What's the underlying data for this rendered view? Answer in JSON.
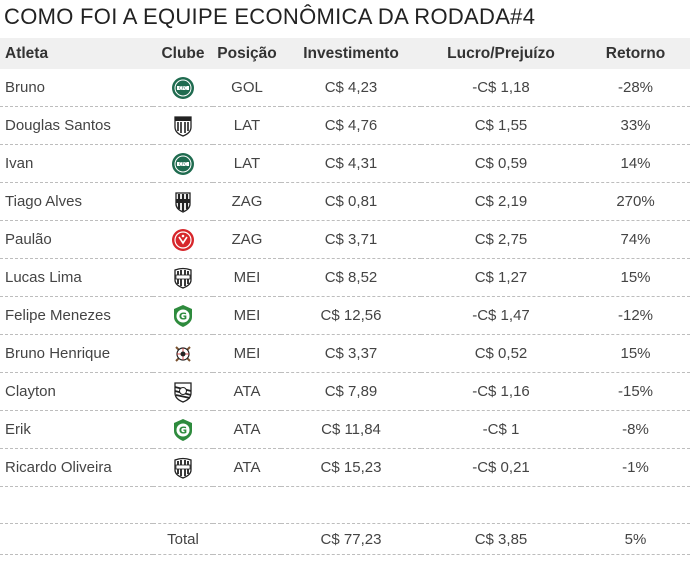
{
  "title": "COMO FOI A EQUIPE ECONÔMICA DA RODADA#4",
  "headers": {
    "atleta": "Atleta",
    "clube": "Clube",
    "posicao": "Posição",
    "investimento": "Investimento",
    "lucro": "Lucro/Prejuízo",
    "retorno": "Retorno"
  },
  "rows": [
    {
      "atleta": "Bruno",
      "clube_icon": "coritiba-crest-icon",
      "posicao": "GOL",
      "investimento": "C$ 4,23",
      "lucro": "-C$ 1,18",
      "retorno": "-28%"
    },
    {
      "atleta": "Douglas Santos",
      "clube_icon": "atletico-mg-crest-icon",
      "posicao": "LAT",
      "investimento": "C$ 4,76",
      "lucro": "C$ 1,55",
      "retorno": "33%"
    },
    {
      "atleta": "Ivan",
      "clube_icon": "coritiba-crest-icon",
      "posicao": "LAT",
      "investimento": "C$ 4,31",
      "lucro": "C$ 0,59",
      "retorno": "14%"
    },
    {
      "atleta": "Tiago Alves",
      "clube_icon": "ponte-preta-crest-icon",
      "posicao": "ZAG",
      "investimento": "C$ 0,81",
      "lucro": "C$ 2,19",
      "retorno": "270%"
    },
    {
      "atleta": "Paulão",
      "clube_icon": "internacional-crest-icon",
      "posicao": "ZAG",
      "investimento": "C$ 3,71",
      "lucro": "C$ 2,75",
      "retorno": "74%"
    },
    {
      "atleta": "Lucas Lima",
      "clube_icon": "santos-crest-icon",
      "posicao": "MEI",
      "investimento": "C$ 8,52",
      "lucro": "C$ 1,27",
      "retorno": "15%"
    },
    {
      "atleta": "Felipe Menezes",
      "clube_icon": "goias-crest-icon",
      "posicao": "MEI",
      "investimento": "C$ 12,56",
      "lucro": "-C$ 1,47",
      "retorno": "-12%"
    },
    {
      "atleta": "Bruno Henrique",
      "clube_icon": "corinthians-crest-icon",
      "posicao": "MEI",
      "investimento": "C$ 3,37",
      "lucro": "C$ 0,52",
      "retorno": "15%"
    },
    {
      "atleta": "Clayton",
      "clube_icon": "figueirense-crest-icon",
      "posicao": "ATA",
      "investimento": "C$ 7,89",
      "lucro": "-C$ 1,16",
      "retorno": "-15%"
    },
    {
      "atleta": "Erik",
      "clube_icon": "goias-crest-icon",
      "posicao": "ATA",
      "investimento": "C$ 11,84",
      "lucro": "-C$ 1",
      "retorno": "-8%"
    },
    {
      "atleta": "Ricardo Oliveira",
      "clube_icon": "santos-crest-icon",
      "posicao": "ATA",
      "investimento": "C$ 15,23",
      "lucro": "-C$ 0,21",
      "retorno": "-1%"
    }
  ],
  "total": {
    "label": "Total",
    "investimento": "C$ 77,23",
    "lucro": "C$ 3,85",
    "retorno": "5%"
  },
  "colors": {
    "coritiba": "#1f6b4f",
    "internacional": "#d7262b",
    "goias": "#2e8b3d",
    "black": "#222222"
  }
}
